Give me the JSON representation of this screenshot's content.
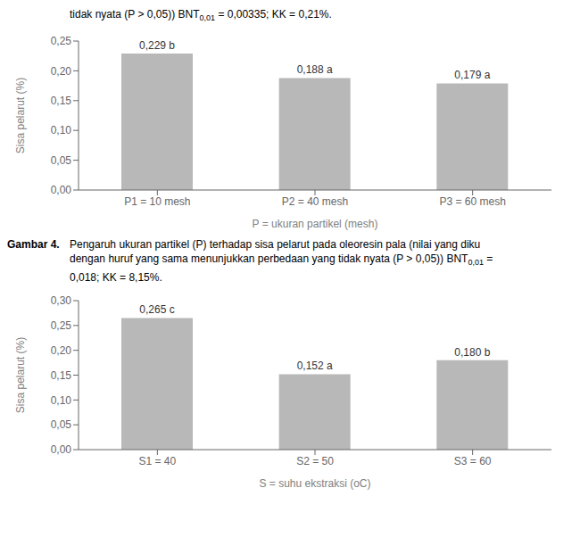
{
  "chart_data": [
    {
      "type": "bar",
      "annotations": [
        [
          "tidak nyata (P > 0,05)) BNT",
          "0,01",
          " = 0,00335; KK = 0,21%."
        ]
      ],
      "categories": [
        "P1 = 10 mesh",
        "P2 = 40 mesh",
        "P3 = 60 mesh"
      ],
      "values": [
        0.229,
        0.188,
        0.179
      ],
      "value_labels": [
        "0,229 b",
        "0,188 a",
        "0,179 a"
      ],
      "data_labels": true,
      "ylabel": "Sisa pelarut (%)",
      "xlabel": "P = ukuran partikel (mesh)",
      "ylim": [
        0,
        0.25
      ],
      "yticks": [
        {
          "value": 0,
          "label": "0,00"
        },
        {
          "value": 0.05,
          "label": "0,05"
        },
        {
          "value": 0.1,
          "label": "0,10"
        },
        {
          "value": 0.15,
          "label": "0,15"
        },
        {
          "value": 0.2,
          "label": "0,20"
        },
        {
          "value": 0.25,
          "label": "0,25"
        }
      ],
      "color": "#b8b8b8",
      "grid": false
    },
    {
      "type": "bar",
      "annotations": [
        [
          "Gambar 4.",
          "Pengaruh ukuran partikel (P) terhadap sisa pelarut pada oleoresin pala (nilai yang diku"
        ],
        [
          "dengan huruf yang sama menunjukkan perbedaan yang tidak nyata (P > 0,05)) BNT",
          "0,01",
          " ="
        ],
        [
          "0,018; KK = 8,15%."
        ]
      ],
      "categories": [
        "S1 = 40",
        "S2 = 50",
        "S3 = 60"
      ],
      "values": [
        0.265,
        0.152,
        0.18
      ],
      "value_labels": [
        "0,265 c",
        "0,152 a",
        "0,180 b"
      ],
      "data_labels": true,
      "ylabel": "Sisa pelarut (%)",
      "xlabel": "S = suhu ekstraksi (oC)",
      "ylim": [
        0,
        0.3
      ],
      "yticks": [
        {
          "value": 0,
          "label": "0,00"
        },
        {
          "value": 0.05,
          "label": "0,05"
        },
        {
          "value": 0.1,
          "label": "0,10"
        },
        {
          "value": 0.15,
          "label": "0,15"
        },
        {
          "value": 0.2,
          "label": "0,20"
        },
        {
          "value": 0.25,
          "label": "0,25"
        },
        {
          "value": 0.3,
          "label": "0,30"
        }
      ],
      "color": "#b8b8b8",
      "grid": false
    }
  ]
}
